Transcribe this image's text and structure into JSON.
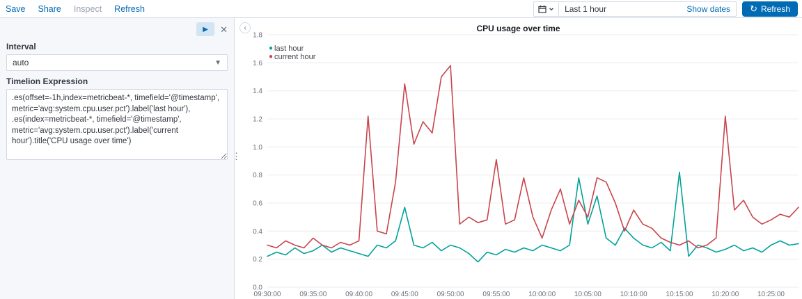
{
  "colors": {
    "link_blue": "#006BB4",
    "disabled_gray": "#98A2B3",
    "refresh_button_bg": "#006BB4",
    "sidebar_bg": "#F5F7FA",
    "border": "#D3DAE6",
    "grid": "#ECECEC"
  },
  "top_bar": {
    "menu": [
      "Save",
      "Share",
      "Inspect",
      "Refresh"
    ],
    "time_picker": {
      "value": "Last 1 hour",
      "show_dates": "Show dates",
      "refresh_button": "Refresh"
    }
  },
  "sidebar": {
    "interval_label": "Interval",
    "interval_value": "auto",
    "expression_label": "Timelion Expression",
    "expression_value": ".es(offset=-1h,index=metricbeat-*, timefield='@timestamp',\nmetric='avg:system.cpu.user.pct').label('last hour'),\n.es(index=metricbeat-*, timefield='@timestamp',\nmetric='avg:system.cpu.user.pct').label('current\nhour').title('CPU usage over time')"
  },
  "chart_data": {
    "type": "line",
    "title": "CPU usage over time",
    "ylim": [
      0,
      1.8
    ],
    "y_tick_step": 0.2,
    "grid": true,
    "legend_position": "top-left",
    "x_tick_labels": [
      "09:30:00",
      "09:35:00",
      "09:40:00",
      "09:45:00",
      "09:50:00",
      "09:55:00",
      "10:00:00",
      "10:05:00",
      "10:10:00",
      "10:15:00",
      "10:20:00",
      "10:25:00"
    ],
    "x_tick_minutes": [
      0,
      5,
      10,
      15,
      20,
      25,
      30,
      35,
      40,
      45,
      50,
      55
    ],
    "x_range_minutes": [
      0,
      58
    ],
    "series": [
      {
        "name": "last hour",
        "color": "#00A29A",
        "values": [
          0.22,
          0.25,
          0.23,
          0.28,
          0.24,
          0.26,
          0.3,
          0.25,
          0.28,
          0.26,
          0.24,
          0.22,
          0.3,
          0.28,
          0.33,
          0.57,
          0.3,
          0.28,
          0.32,
          0.26,
          0.3,
          0.28,
          0.24,
          0.18,
          0.25,
          0.23,
          0.27,
          0.25,
          0.28,
          0.26,
          0.3,
          0.28,
          0.26,
          0.3,
          0.78,
          0.45,
          0.65,
          0.35,
          0.3,
          0.42,
          0.35,
          0.3,
          0.28,
          0.32,
          0.26,
          0.82,
          0.22,
          0.3,
          0.28,
          0.25,
          0.27,
          0.3,
          0.26,
          0.28,
          0.25,
          0.3,
          0.33,
          0.3,
          0.31
        ]
      },
      {
        "name": "current hour",
        "color": "#C8444C",
        "values": [
          0.3,
          0.28,
          0.33,
          0.3,
          0.28,
          0.35,
          0.3,
          0.28,
          0.32,
          0.3,
          0.33,
          1.22,
          0.4,
          0.38,
          0.75,
          1.45,
          1.02,
          1.18,
          1.1,
          1.5,
          1.58,
          0.45,
          0.5,
          0.46,
          0.48,
          0.91,
          0.45,
          0.48,
          0.78,
          0.5,
          0.35,
          0.55,
          0.7,
          0.45,
          0.62,
          0.5,
          0.78,
          0.75,
          0.6,
          0.4,
          0.55,
          0.45,
          0.42,
          0.35,
          0.32,
          0.3,
          0.33,
          0.28,
          0.3,
          0.35,
          1.22,
          0.55,
          0.62,
          0.5,
          0.45,
          0.48,
          0.52,
          0.5,
          0.57
        ]
      }
    ]
  }
}
